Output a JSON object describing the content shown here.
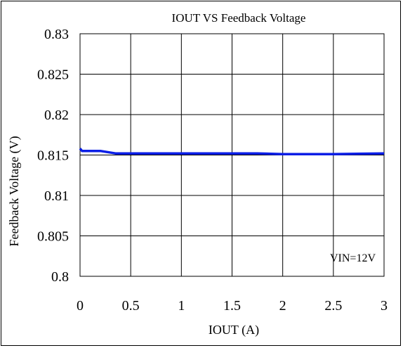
{
  "chart_data": {
    "type": "line",
    "title": "IOUT VS Feedback Voltage",
    "xlabel": "IOUT (A)",
    "ylabel": "Feedback Voltage (V)",
    "xlim": [
      0,
      3
    ],
    "ylim": [
      0.8,
      0.83
    ],
    "xticks": [
      "0",
      "0.5",
      "1",
      "1.5",
      "2",
      "2.5",
      "3"
    ],
    "yticks": [
      "0.8",
      "0.805",
      "0.81",
      "0.815",
      "0.82",
      "0.825",
      "0.83"
    ],
    "grid": true,
    "annotation": "VIN=12V",
    "series": [
      {
        "color": "#0a1ee6",
        "x": [
          0,
          0.02,
          0.2,
          0.35,
          0.5,
          1.0,
          1.5,
          1.75,
          2.0,
          2.5,
          3.0
        ],
        "y": [
          0.8158,
          0.8155,
          0.8155,
          0.8152,
          0.8152,
          0.8152,
          0.8152,
          0.8152,
          0.8151,
          0.8151,
          0.8152
        ]
      }
    ]
  }
}
